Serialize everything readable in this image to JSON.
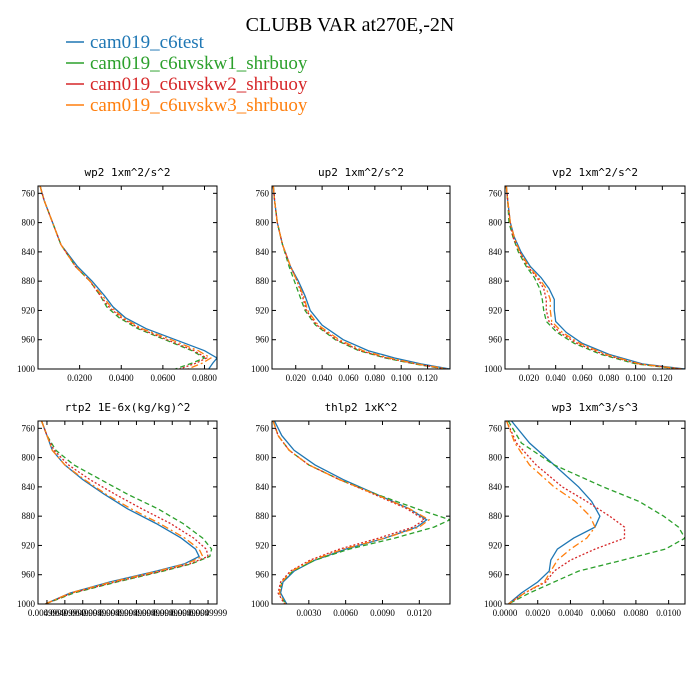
{
  "title": "CLUBB VAR at270E,-2N",
  "legend": [
    {
      "name": "cam019_c6test",
      "color": "#1f77b4",
      "dash": ""
    },
    {
      "name": "cam019_c6uvskw1_shrbuoy",
      "color": "#2ca02c",
      "dash": "5,3"
    },
    {
      "name": "cam019_c6uvskw2_shrbuoy",
      "color": "#d62728",
      "dash": "2,2"
    },
    {
      "name": "cam019_c6uvskw3_shrbuoy",
      "color": "#ff7f0e",
      "dash": "7,3,2,3"
    }
  ],
  "chart_data": [
    {
      "type": "line",
      "title": "wp2  1xm^2/s^2",
      "xlim": [
        0.0,
        0.086
      ],
      "ylim": [
        1000,
        750
      ],
      "xticks": [
        0.02,
        0.04,
        0.06,
        0.08
      ],
      "xtick_labels": [
        "0.0200",
        "0.0400",
        "0.0600",
        "0.0800"
      ],
      "yticks": [
        760,
        800,
        840,
        880,
        920,
        960,
        1000
      ],
      "ytick_labels": [
        "760",
        "800",
        "840",
        "880",
        "920",
        "960",
        "1000"
      ],
      "y": [
        750,
        770,
        800,
        830,
        860,
        880,
        900,
        915,
        930,
        945,
        960,
        975,
        985,
        992,
        1000
      ],
      "series": [
        {
          "name": "cam019_c6test",
          "values": [
            0.001,
            0.003,
            0.007,
            0.011,
            0.019,
            0.026,
            0.032,
            0.036,
            0.042,
            0.052,
            0.066,
            0.08,
            0.086,
            0.084,
            0.082
          ]
        },
        {
          "name": "cam019_c6uvskw1_shrbuoy",
          "values": [
            0.001,
            0.003,
            0.007,
            0.011,
            0.018,
            0.025,
            0.03,
            0.033,
            0.039,
            0.048,
            0.061,
            0.074,
            0.08,
            0.074,
            0.066
          ]
        },
        {
          "name": "cam019_c6uvskw2_shrbuoy",
          "values": [
            0.001,
            0.003,
            0.007,
            0.011,
            0.018,
            0.025,
            0.03,
            0.034,
            0.04,
            0.049,
            0.062,
            0.075,
            0.081,
            0.076,
            0.068
          ]
        },
        {
          "name": "cam019_c6uvskw3_shrbuoy",
          "values": [
            0.001,
            0.003,
            0.007,
            0.011,
            0.018,
            0.025,
            0.031,
            0.035,
            0.041,
            0.05,
            0.064,
            0.077,
            0.083,
            0.079,
            0.072
          ]
        }
      ]
    },
    {
      "type": "line",
      "title": "up2  1xm^2/s^2",
      "xlim": [
        0.002,
        0.137
      ],
      "ylim": [
        1000,
        750
      ],
      "xticks": [
        0.02,
        0.04,
        0.06,
        0.08,
        0.1,
        0.12
      ],
      "xtick_labels": [
        "0.020",
        "0.040",
        "0.060",
        "0.080",
        "0.100",
        "0.120"
      ],
      "yticks": [
        760,
        800,
        840,
        880,
        920,
        960,
        1000
      ],
      "ytick_labels": [
        "760",
        "800",
        "840",
        "880",
        "920",
        "960",
        "1000"
      ],
      "y": [
        750,
        770,
        800,
        830,
        860,
        880,
        900,
        920,
        940,
        960,
        975,
        985,
        993,
        1000
      ],
      "series": [
        {
          "name": "cam019_c6test",
          "values": [
            0.003,
            0.004,
            0.006,
            0.01,
            0.016,
            0.022,
            0.027,
            0.031,
            0.04,
            0.056,
            0.075,
            0.095,
            0.115,
            0.137
          ]
        },
        {
          "name": "cam019_c6uvskw1_shrbuoy",
          "values": [
            0.003,
            0.004,
            0.006,
            0.01,
            0.015,
            0.019,
            0.023,
            0.027,
            0.035,
            0.05,
            0.068,
            0.088,
            0.11,
            0.133
          ]
        },
        {
          "name": "cam019_c6uvskw2_shrbuoy",
          "values": [
            0.003,
            0.004,
            0.006,
            0.01,
            0.016,
            0.021,
            0.025,
            0.028,
            0.036,
            0.051,
            0.069,
            0.089,
            0.111,
            0.134
          ]
        },
        {
          "name": "cam019_c6uvskw3_shrbuoy",
          "values": [
            0.003,
            0.004,
            0.006,
            0.01,
            0.016,
            0.021,
            0.026,
            0.029,
            0.037,
            0.053,
            0.071,
            0.091,
            0.112,
            0.135
          ]
        }
      ]
    },
    {
      "type": "line",
      "title": "vp2  1xm^2/s^2",
      "xlim": [
        0.002,
        0.137
      ],
      "ylim": [
        1000,
        750
      ],
      "xticks": [
        0.02,
        0.04,
        0.06,
        0.08,
        0.1,
        0.12
      ],
      "xtick_labels": [
        "0.020",
        "0.040",
        "0.060",
        "0.080",
        "0.100",
        "0.120"
      ],
      "yticks": [
        760,
        800,
        840,
        880,
        920,
        960,
        1000
      ],
      "ytick_labels": [
        "760",
        "800",
        "840",
        "880",
        "920",
        "960",
        "1000"
      ],
      "y": [
        750,
        770,
        800,
        820,
        840,
        860,
        875,
        890,
        905,
        920,
        935,
        950,
        965,
        980,
        993,
        1000
      ],
      "series": [
        {
          "name": "cam019_c6test",
          "values": [
            0.003,
            0.004,
            0.006,
            0.009,
            0.014,
            0.021,
            0.029,
            0.035,
            0.039,
            0.039,
            0.04,
            0.048,
            0.06,
            0.08,
            0.105,
            0.137
          ]
        },
        {
          "name": "cam019_c6uvskw1_shrbuoy",
          "values": [
            0.003,
            0.004,
            0.005,
            0.008,
            0.012,
            0.018,
            0.024,
            0.028,
            0.03,
            0.031,
            0.033,
            0.041,
            0.054,
            0.074,
            0.1,
            0.133
          ]
        },
        {
          "name": "cam019_c6uvskw2_shrbuoy",
          "values": [
            0.003,
            0.004,
            0.006,
            0.008,
            0.013,
            0.019,
            0.026,
            0.031,
            0.033,
            0.033,
            0.035,
            0.043,
            0.056,
            0.076,
            0.102,
            0.134
          ]
        },
        {
          "name": "cam019_c6uvskw3_shrbuoy",
          "values": [
            0.003,
            0.004,
            0.006,
            0.009,
            0.013,
            0.02,
            0.027,
            0.033,
            0.036,
            0.036,
            0.037,
            0.045,
            0.058,
            0.078,
            0.103,
            0.135
          ]
        }
      ]
    },
    {
      "type": "line",
      "title": "rtp2  1E-6x(kg/kg)^2",
      "xlim": [
        0.0,
        1.0
      ],
      "ylim": [
        1000,
        750
      ],
      "xticks": [
        0.05,
        0.15,
        0.25,
        0.35,
        0.45,
        0.55,
        0.65,
        0.75,
        0.85,
        0.95
      ],
      "xtick_labels": [
        "0.0049999",
        "0.00499999",
        "0.0049999",
        "0.0049999",
        "0.0049999",
        "0.0049999",
        "0.0049999",
        "0.0049999",
        "0.0049999",
        "0.0049999"
      ],
      "yticks": [
        760,
        800,
        840,
        880,
        920,
        960,
        1000
      ],
      "ytick_labels": [
        "760",
        "800",
        "840",
        "880",
        "920",
        "960",
        "1000"
      ],
      "y": [
        750,
        770,
        790,
        810,
        830,
        850,
        870,
        890,
        910,
        925,
        935,
        945,
        955,
        970,
        985,
        1000
      ],
      "series": [
        {
          "name": "cam019_c6test",
          "values": [
            0.02,
            0.05,
            0.08,
            0.15,
            0.25,
            0.37,
            0.5,
            0.66,
            0.8,
            0.88,
            0.9,
            0.82,
            0.66,
            0.4,
            0.18,
            0.04
          ]
        },
        {
          "name": "cam019_c6uvskw1_shrbuoy",
          "values": [
            0.02,
            0.05,
            0.1,
            0.2,
            0.35,
            0.5,
            0.67,
            0.81,
            0.92,
            0.97,
            0.96,
            0.86,
            0.7,
            0.44,
            0.2,
            0.04
          ]
        },
        {
          "name": "cam019_c6uvskw2_shrbuoy",
          "values": [
            0.02,
            0.05,
            0.09,
            0.17,
            0.29,
            0.43,
            0.58,
            0.74,
            0.87,
            0.94,
            0.95,
            0.85,
            0.69,
            0.43,
            0.19,
            0.04
          ]
        },
        {
          "name": "cam019_c6uvskw3_shrbuoy",
          "values": [
            0.02,
            0.05,
            0.08,
            0.15,
            0.26,
            0.38,
            0.52,
            0.68,
            0.82,
            0.9,
            0.92,
            0.83,
            0.67,
            0.41,
            0.18,
            0.04
          ]
        }
      ]
    },
    {
      "type": "line",
      "title": "thlp2  1xK^2",
      "xlim": [
        0.0,
        0.0145
      ],
      "ylim": [
        1000,
        750
      ],
      "xticks": [
        0.003,
        0.006,
        0.009,
        0.012
      ],
      "xtick_labels": [
        "0.0030",
        "0.0060",
        "0.0090",
        "0.0120"
      ],
      "yticks": [
        760,
        800,
        840,
        880,
        920,
        960,
        1000
      ],
      "ytick_labels": [
        "760",
        "800",
        "840",
        "880",
        "920",
        "960",
        "1000"
      ],
      "y": [
        750,
        770,
        790,
        810,
        830,
        850,
        870,
        885,
        895,
        910,
        925,
        940,
        955,
        970,
        985,
        1000
      ],
      "series": [
        {
          "name": "cam019_c6test",
          "values": [
            0.0002,
            0.0008,
            0.0018,
            0.0035,
            0.0058,
            0.0085,
            0.0112,
            0.0126,
            0.0118,
            0.0092,
            0.006,
            0.0035,
            0.0018,
            0.0009,
            0.0007,
            0.0012
          ]
        },
        {
          "name": "cam019_c6uvskw1_shrbuoy",
          "values": [
            0.0001,
            0.0005,
            0.0014,
            0.003,
            0.0055,
            0.0085,
            0.0118,
            0.0145,
            0.0132,
            0.01,
            0.0063,
            0.0035,
            0.0017,
            0.0008,
            0.0006,
            0.0011
          ]
        },
        {
          "name": "cam019_c6uvskw2_shrbuoy",
          "values": [
            0.0001,
            0.0005,
            0.0014,
            0.003,
            0.0055,
            0.0083,
            0.011,
            0.0124,
            0.0115,
            0.0087,
            0.0055,
            0.0031,
            0.0015,
            0.0007,
            0.0005,
            0.001
          ]
        },
        {
          "name": "cam019_c6uvskw3_shrbuoy",
          "values": [
            0.0001,
            0.0005,
            0.0014,
            0.003,
            0.0055,
            0.0084,
            0.0112,
            0.0128,
            0.012,
            0.0092,
            0.0058,
            0.0033,
            0.0016,
            0.0008,
            0.0006,
            0.0011
          ]
        }
      ]
    },
    {
      "type": "line",
      "title": "wp3  1xm^3/s^3",
      "xlim": [
        0.0,
        0.011
      ],
      "ylim": [
        1000,
        750
      ],
      "xticks": [
        0.0,
        0.002,
        0.004,
        0.006,
        0.008,
        0.01
      ],
      "xtick_labels": [
        "0.0000",
        "0.0020",
        "0.0040",
        "0.0060",
        "0.0080",
        "0.0100"
      ],
      "yticks": [
        760,
        800,
        840,
        880,
        920,
        960,
        1000
      ],
      "ytick_labels": [
        "760",
        "800",
        "840",
        "880",
        "920",
        "960",
        "1000"
      ],
      "y": [
        750,
        780,
        810,
        840,
        860,
        880,
        895,
        910,
        925,
        940,
        955,
        970,
        985,
        1000
      ],
      "series": [
        {
          "name": "cam019_c6test",
          "values": [
            0.0004,
            0.0015,
            0.003,
            0.0045,
            0.0053,
            0.0058,
            0.0055,
            0.0042,
            0.0032,
            0.0028,
            0.0027,
            0.002,
            0.001,
            0.0002
          ]
        },
        {
          "name": "cam019_c6uvskw1_shrbuoy",
          "values": [
            0.0002,
            0.001,
            0.003,
            0.006,
            0.0082,
            0.0097,
            0.0106,
            0.011,
            0.0098,
            0.0072,
            0.0045,
            0.003,
            0.0015,
            0.0002
          ]
        },
        {
          "name": "cam019_c6uvskw2_shrbuoy",
          "values": [
            0.0001,
            0.0007,
            0.0019,
            0.0035,
            0.005,
            0.0064,
            0.0073,
            0.0073,
            0.0055,
            0.004,
            0.003,
            0.0025,
            0.0012,
            0.0002
          ]
        },
        {
          "name": "cam019_c6uvskw3_shrbuoy",
          "values": [
            0.0001,
            0.0006,
            0.0015,
            0.003,
            0.0043,
            0.0052,
            0.0055,
            0.005,
            0.004,
            0.0032,
            0.0028,
            0.0024,
            0.0012,
            0.0002
          ]
        }
      ]
    }
  ]
}
